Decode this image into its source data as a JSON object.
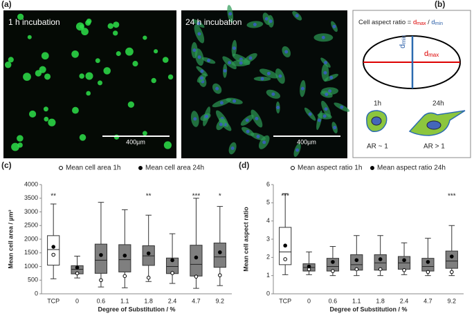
{
  "panels": {
    "a": {
      "label": "(a)",
      "images": [
        {
          "caption": "1 h incubation",
          "scale": "400µm"
        },
        {
          "caption": "24 h incubation",
          "scale": "400µm"
        }
      ]
    },
    "b": {
      "label": "(b)",
      "formula": [
        "Cell aspect ratio = ",
        "d",
        "max",
        " / ",
        "d",
        "min"
      ],
      "d_min": [
        "d",
        "min"
      ],
      "d_max": [
        "d",
        "max"
      ],
      "cells": [
        {
          "time": "1h",
          "ar": "AR ~ 1"
        },
        {
          "time": "24h",
          "ar": "AR > 1"
        }
      ]
    }
  },
  "chart_data": [
    {
      "type": "box",
      "label": "(c)",
      "ylabel": "Mean cell area / µm²",
      "xlabel": "Degree of Substitution / %",
      "categories": [
        "TCP",
        "0",
        "0.6",
        "1.1",
        "1.8",
        "2.4",
        "4.7",
        "9.2"
      ],
      "ylim": [
        0,
        4000
      ],
      "yticks": [
        0,
        500,
        1000,
        1500,
        2000,
        2500,
        3000,
        3500,
        4000
      ],
      "box_colors": [
        "#ffffff",
        "#7f7f7f",
        "#7f7f7f",
        "#7f7f7f",
        "#7f7f7f",
        "#7f7f7f",
        "#7f7f7f",
        "#7f7f7f"
      ],
      "boxes": [
        {
          "low": 550,
          "q1": 1050,
          "median": 1620,
          "q3": 2130,
          "high": 3290
        },
        {
          "low": 580,
          "q1": 730,
          "median": 900,
          "q3": 1030,
          "high": 1380
        },
        {
          "low": 250,
          "q1": 750,
          "median": 1230,
          "q3": 1820,
          "high": 3350
        },
        {
          "low": 220,
          "q1": 800,
          "median": 1250,
          "q3": 1800,
          "high": 3080
        },
        {
          "low": 450,
          "q1": 1040,
          "median": 1390,
          "q3": 1760,
          "high": 2880
        },
        {
          "low": 380,
          "q1": 740,
          "median": 1000,
          "q3": 1310,
          "high": 2200
        },
        {
          "low": 200,
          "q1": 650,
          "median": 1080,
          "q3": 1780,
          "high": 3500
        },
        {
          "low": 300,
          "q1": 970,
          "median": 1350,
          "q3": 1860,
          "high": 3200
        }
      ],
      "series": [
        {
          "name": "Mean cell area 1h",
          "marker": "open",
          "values": [
            1430,
            750,
            500,
            650,
            590,
            760,
            630,
            680
          ]
        },
        {
          "name": "Mean cell area 24h",
          "marker": "filled",
          "values": [
            1720,
            960,
            1420,
            1400,
            1480,
            1230,
            1330,
            1520
          ]
        }
      ],
      "significance": [
        "**",
        null,
        null,
        null,
        "**",
        null,
        "***",
        "*"
      ]
    },
    {
      "type": "box",
      "label": "(d)",
      "ylabel": "Mean cell aspect ratio",
      "xlabel": "Degree of Substitution / %",
      "categories": [
        "TCP",
        "0",
        "0.6",
        "1.1",
        "1.8",
        "2.4",
        "4.7",
        "9.2"
      ],
      "ylim": [
        0,
        6
      ],
      "yticks": [
        0,
        1,
        2,
        3,
        4,
        5,
        6
      ],
      "box_colors": [
        "#ffffff",
        "#7f7f7f",
        "#7f7f7f",
        "#7f7f7f",
        "#7f7f7f",
        "#7f7f7f",
        "#7f7f7f",
        "#7f7f7f"
      ],
      "boxes": [
        {
          "low": 1.05,
          "q1": 1.6,
          "median": 2.3,
          "q3": 3.65,
          "high": 5.5
        },
        {
          "low": 1.05,
          "q1": 1.25,
          "median": 1.45,
          "q3": 1.65,
          "high": 2.3
        },
        {
          "low": 1.0,
          "q1": 1.25,
          "median": 1.5,
          "q3": 1.95,
          "high": 2.6
        },
        {
          "low": 1.0,
          "q1": 1.3,
          "median": 1.6,
          "q3": 2.15,
          "high": 3.2
        },
        {
          "low": 1.0,
          "q1": 1.3,
          "median": 1.7,
          "q3": 2.15,
          "high": 3.2
        },
        {
          "low": 1.05,
          "q1": 1.35,
          "median": 1.7,
          "q3": 2.05,
          "high": 2.8
        },
        {
          "low": 1.0,
          "q1": 1.25,
          "median": 1.5,
          "q3": 1.95,
          "high": 3.05
        },
        {
          "low": 1.0,
          "q1": 1.4,
          "median": 1.8,
          "q3": 2.35,
          "high": 3.75
        }
      ],
      "series": [
        {
          "name": "Mean aspect ratio 1h",
          "marker": "open",
          "values": [
            1.9,
            1.35,
            1.25,
            1.35,
            1.35,
            1.3,
            1.2,
            1.2
          ]
        },
        {
          "name": "Mean aspect ratio 24h",
          "marker": "filled",
          "values": [
            2.65,
            1.5,
            1.75,
            1.85,
            1.9,
            1.85,
            1.75,
            2.05
          ]
        }
      ],
      "significance": [
        "***",
        null,
        null,
        null,
        null,
        null,
        null,
        "***"
      ]
    }
  ]
}
